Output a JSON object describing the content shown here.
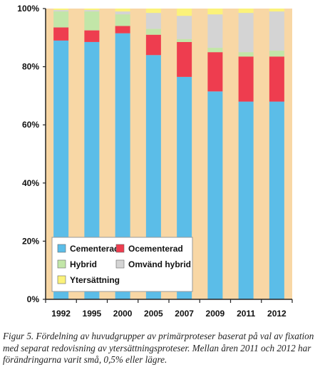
{
  "chart_data": {
    "type": "bar",
    "stacked": true,
    "categories": [
      "1992",
      "1995",
      "2000",
      "2005",
      "2007",
      "2009",
      "2011",
      "2012"
    ],
    "ylim": [
      0,
      100
    ],
    "yticks": [
      "0%",
      "20%",
      "40%",
      "60%",
      "80%",
      "100%"
    ],
    "ytick_values": [
      0,
      20,
      40,
      60,
      80,
      100
    ],
    "series": [
      {
        "name": "Cementerad",
        "color": "#5bbde8",
        "values": [
          89,
          88.5,
          91.5,
          84,
          76.5,
          71.5,
          68,
          68
        ]
      },
      {
        "name": "Ocementerad",
        "color": "#ee3d4f",
        "values": [
          4.5,
          4,
          2.5,
          7,
          12,
          13.5,
          15.5,
          15.5
        ]
      },
      {
        "name": "Hybrid",
        "color": "#c2e6a8",
        "values": [
          5.5,
          6.5,
          4,
          2,
          1,
          1.5,
          1.5,
          2
        ]
      },
      {
        "name": "Omvänd hybrid",
        "color": "#d4d4d4",
        "values": [
          0.5,
          0.5,
          1,
          5.5,
          8,
          11.5,
          13.5,
          13.5
        ]
      },
      {
        "name": "Ytersättning",
        "color": "#fbf27a",
        "values": [
          0.5,
          0.5,
          1,
          1.5,
          2.5,
          2,
          1.5,
          1
        ]
      }
    ],
    "legend_position": "bottom-left",
    "plot_background": "#f8d7a5",
    "grid": false
  },
  "caption": "Figur 5. Fördelning av huvudgrupper av primärproteser baserat på val av fixation med separat redovisning av ytersättningsproteser. Mellan åren 2011 och 2012 har förändringarna varit små, 0,5% eller lägre."
}
